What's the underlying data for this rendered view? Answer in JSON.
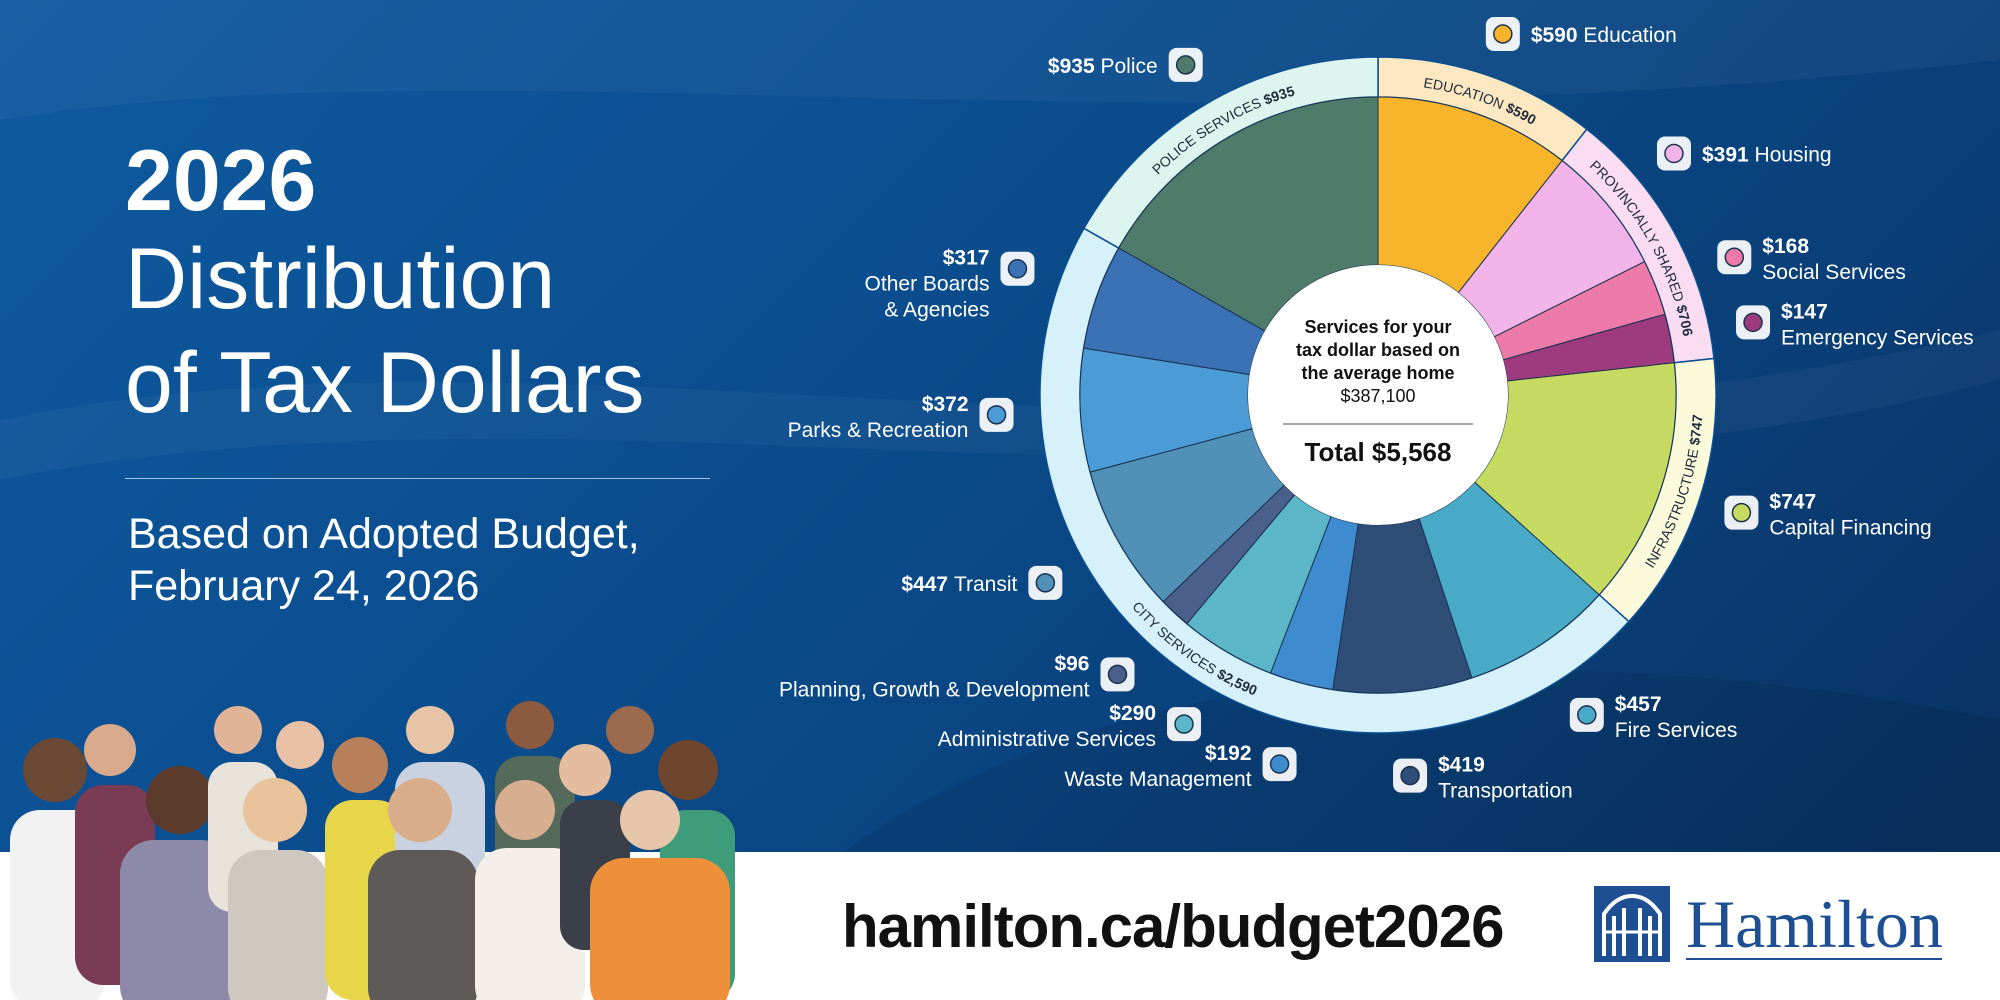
{
  "title": {
    "year": "2026",
    "line1": "Distribution",
    "line2": "of Tax Dollars"
  },
  "subtitle": {
    "line1": "Based on Adopted Budget,",
    "line2": "February 24, 2026"
  },
  "footer": {
    "url": "hamilton.ca/budget2026",
    "logo_text": "Hamilton"
  },
  "colors": {
    "background": "#0b4f91",
    "footer": "#ffffff",
    "logo": "#1f4f93"
  },
  "chart_data": {
    "type": "pie",
    "center": {
      "line1": "Services for your",
      "line2": "tax dollar based on",
      "line3": "the average home",
      "line4": "$387,100",
      "total": "Total $5,568"
    },
    "groups": [
      {
        "name": "EDUCATION",
        "amount": "$590",
        "value": 590,
        "color": "#fde8c2"
      },
      {
        "name": "PROVINCIALLY SHARED",
        "amount": "$706",
        "value": 706,
        "color": "#fadcf3"
      },
      {
        "name": "INFRASTRUCTURE",
        "amount": "$747",
        "value": 747,
        "color": "#fbfbdc"
      },
      {
        "name": "CITY SERVICES",
        "amount": "$2,590",
        "value": 2590,
        "color": "#d6f1fa"
      },
      {
        "name": "POLICE SERVICES",
        "amount": "$935",
        "value": 935,
        "color": "#dcf5ee"
      }
    ],
    "slices": [
      {
        "category": "Education",
        "amount": "$590",
        "value": 590,
        "color": "#f8b52c",
        "icon": "graduation-cap-icon"
      },
      {
        "category": "Housing",
        "amount": "$391",
        "value": 391,
        "color": "#f2b3e8",
        "icon": "house-icon"
      },
      {
        "category": "Social Services",
        "amount": "$168",
        "value": 168,
        "color": "#ee7aa9",
        "icon": "heart-hands-icon"
      },
      {
        "category": "Emergency Services",
        "amount": "$147",
        "value": 147,
        "color": "#9e3a7e",
        "icon": "medical-kit-icon"
      },
      {
        "category": "Capital Financing",
        "amount": "$747",
        "value": 747,
        "color": "#c6d960",
        "icon": "money-icon"
      },
      {
        "category": "Fire Services",
        "amount": "$457",
        "value": 457,
        "color": "#49aac8",
        "icon": "flame-icon"
      },
      {
        "category": "Transportation",
        "amount": "$419",
        "value": 419,
        "color": "#2e4e78",
        "icon": "road-icon"
      },
      {
        "category": "Waste Management",
        "amount": "$192",
        "value": 192,
        "color": "#3f8bd0",
        "icon": "trash-can-icon"
      },
      {
        "category": "Administrative Services",
        "amount": "$290",
        "value": 290,
        "color": "#5bb7c8",
        "icon": "id-card-icon"
      },
      {
        "category": "Planning, Growth & Development",
        "amount": "$96",
        "value": 96,
        "color": "#4a5f8a",
        "icon": "factory-icon"
      },
      {
        "category": "Transit",
        "amount": "$447",
        "value": 447,
        "color": "#5191b8",
        "icon": "bus-icon"
      },
      {
        "category": "Parks & Recreation",
        "amount": "$372",
        "value": 372,
        "color": "#4a9bd6",
        "icon": "trees-icon"
      },
      {
        "category": "Other Boards & Agencies",
        "amount": "$317",
        "value": 317,
        "color": "#3b72b6",
        "icon": "book-icon"
      },
      {
        "category": "Police",
        "amount": "$935",
        "value": 935,
        "color": "#4f7b6a",
        "icon": "police-badge-icon"
      }
    ],
    "total": 5568
  }
}
